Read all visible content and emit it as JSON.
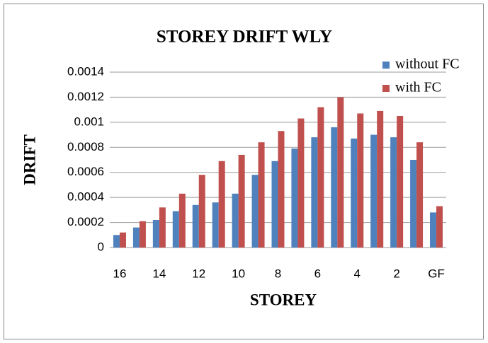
{
  "chart_data": {
    "type": "bar",
    "title": "STOREY DRIFT WLY",
    "xlabel": "STOREY",
    "ylabel": "DRIFT",
    "categories": [
      "16",
      null,
      "14",
      null,
      "12",
      null,
      "10",
      null,
      "8",
      null,
      "6",
      null,
      "4",
      null,
      "2",
      null,
      "GF"
    ],
    "series": [
      {
        "name": "without FC",
        "color": "#4f81bd",
        "values": [
          0.0001,
          0.00016,
          0.00022,
          0.00029,
          0.00034,
          0.00036,
          0.00043,
          0.00058,
          0.00069,
          0.00079,
          0.00088,
          0.00096,
          0.00087,
          0.0009,
          0.00088,
          0.0007,
          0.00028
        ]
      },
      {
        "name": "with FC",
        "color": "#c0504d",
        "values": [
          0.00012,
          0.00021,
          0.00032,
          0.00043,
          0.00058,
          0.00069,
          0.00074,
          0.00084,
          0.00093,
          0.00103,
          0.00112,
          0.0012,
          0.00107,
          0.00109,
          0.00105,
          0.00084,
          0.00033
        ]
      }
    ],
    "ylim": [
      0,
      0.0014
    ],
    "yticks": [
      0,
      0.0002,
      0.0004,
      0.0006,
      0.0008,
      0.001,
      0.0012,
      0.0014
    ],
    "grid": true,
    "legend": "top-right"
  }
}
